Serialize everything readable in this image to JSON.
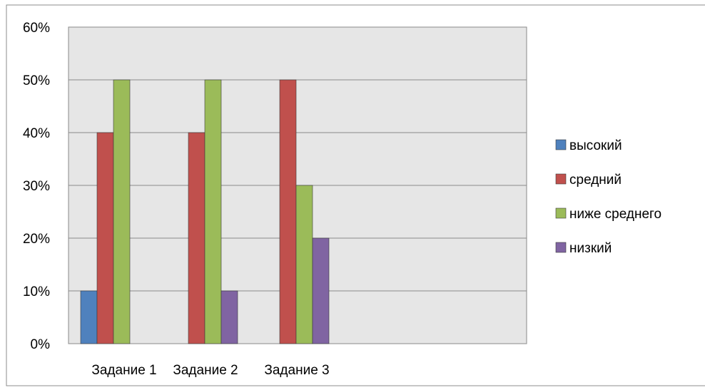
{
  "chart_data": {
    "type": "bar",
    "categories": [
      "Задание 1",
      "Задание 2",
      "Задание 3"
    ],
    "series": [
      {
        "name": "высокий",
        "values": [
          10,
          0,
          0
        ],
        "color": "#4f81bd"
      },
      {
        "name": "средний",
        "values": [
          40,
          40,
          50
        ],
        "color": "#c0504d"
      },
      {
        "name": "ниже среднего",
        "values": [
          50,
          50,
          30
        ],
        "color": "#9bbb59"
      },
      {
        "name": "низкий",
        "values": [
          0,
          10,
          20
        ],
        "color": "#8064a2"
      }
    ],
    "yticks": [
      "0%",
      "10%",
      "20%",
      "30%",
      "40%",
      "50%",
      "60%"
    ],
    "ylim": [
      0,
      60
    ],
    "grid": true,
    "legend_position": "right",
    "plot_background": "#e6e6e6",
    "title": "",
    "xlabel": "",
    "ylabel": ""
  }
}
